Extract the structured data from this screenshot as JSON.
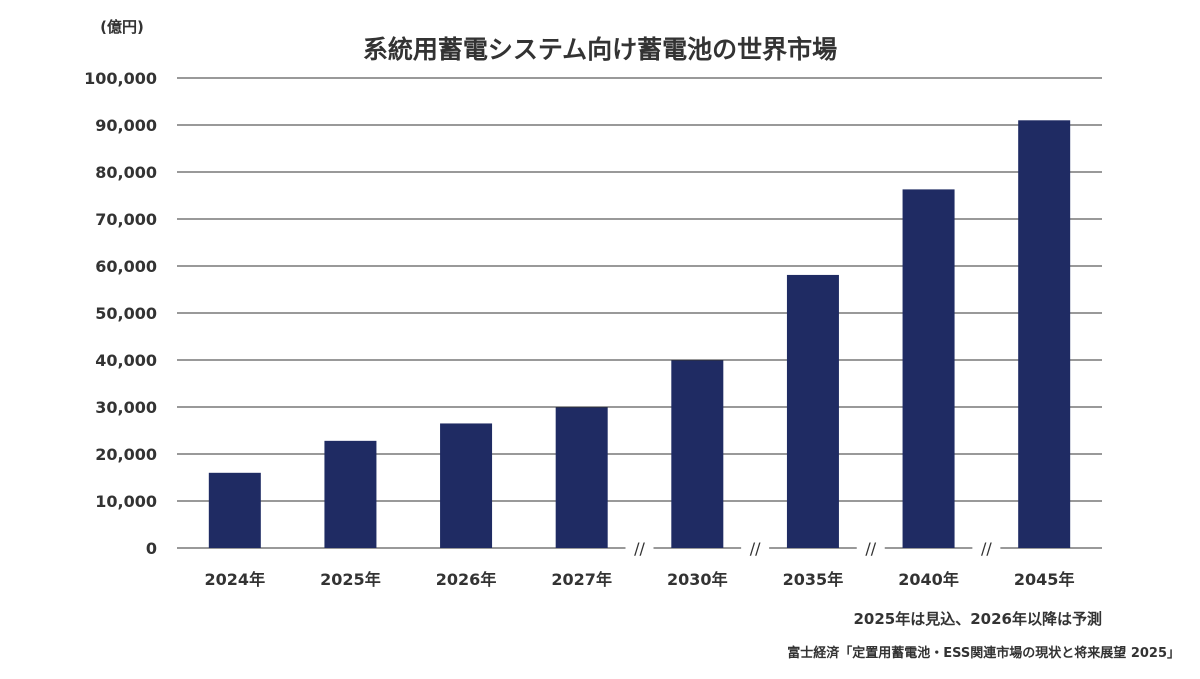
{
  "chart_data": {
    "type": "bar",
    "title": "系統用蓄電システム向け蓄電池の世界市場",
    "unit_label": "(億円)",
    "categories": [
      "2024年",
      "2025年",
      "2026年",
      "2027年",
      "2030年",
      "2035年",
      "2040年",
      "2045年"
    ],
    "series": [
      {
        "values": [
          16000,
          22800,
          26500,
          29900,
          39900,
          58100,
          76300,
          91000
        ]
      }
    ],
    "ylim": [
      0,
      100000
    ],
    "yticks": [
      0,
      10000,
      20000,
      30000,
      40000,
      50000,
      60000,
      70000,
      80000,
      90000,
      100000
    ],
    "ytick_labels": [
      "0",
      "10,000",
      "20,000",
      "30,000",
      "40,000",
      "50,000",
      "60,000",
      "70,000",
      "80,000",
      "90,000",
      "100,000"
    ],
    "axis_break_marks": [
      "//",
      "//",
      "//",
      "//"
    ],
    "bar_color": "#1f2b63",
    "grid": true,
    "note": "2025年は見込、2026年以降は予測",
    "source": "富士経済「定置用蓄電池・ESS関連市場の現状と将来展望 2025」"
  }
}
